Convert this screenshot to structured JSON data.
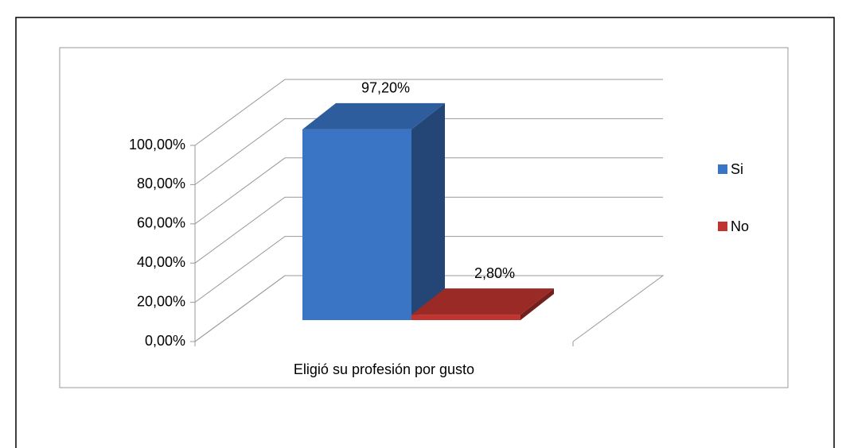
{
  "chart_data": {
    "type": "bar3d",
    "categories": [
      "Eligió su profesión por gusto"
    ],
    "series": [
      {
        "name": "Si",
        "color": "#3a74c4",
        "values": [
          97.2
        ],
        "value_labels": [
          "97,20%"
        ]
      },
      {
        "name": "No",
        "color": "#c0352f",
        "values": [
          2.8
        ],
        "value_labels": [
          "2,80%"
        ]
      }
    ],
    "ylim": [
      0,
      100
    ],
    "yticks": [
      {
        "value": 0,
        "label": "0,00%"
      },
      {
        "value": 20,
        "label": "20,00%"
      },
      {
        "value": 40,
        "label": "40,00%"
      },
      {
        "value": 60,
        "label": "60,00%"
      },
      {
        "value": 80,
        "label": "80,00%"
      },
      {
        "value": 100,
        "label": "100,00%"
      }
    ],
    "grid": true,
    "legend": "right"
  }
}
